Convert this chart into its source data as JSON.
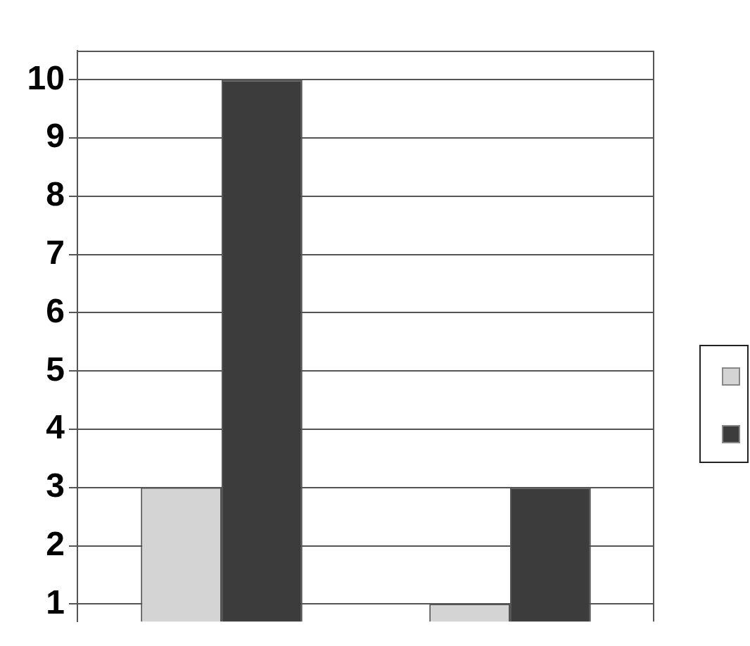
{
  "chart_data": {
    "type": "bar",
    "categories": [
      null,
      null
    ],
    "series": [
      {
        "color": "#d4d4d4",
        "values": [
          3,
          1
        ]
      },
      {
        "color": "#3c3c3c",
        "values": [
          10,
          3
        ]
      }
    ],
    "ylim": [
      0.7,
      10.5
    ],
    "yticks": [
      1,
      2,
      3,
      4,
      5,
      6,
      7,
      8,
      9,
      10
    ],
    "grid": "y",
    "tick_labels": "y"
  }
}
